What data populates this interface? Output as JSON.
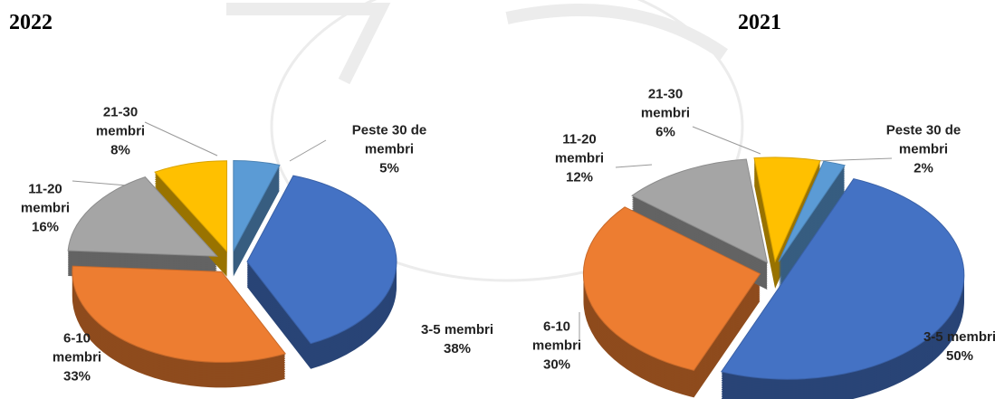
{
  "chart_data": [
    {
      "type": "pie",
      "title": "2022",
      "categories": [
        "3-5 membri",
        "6-10 membri",
        "11-20 membri",
        "21-30 membri",
        "Peste 30 de membri"
      ],
      "values": [
        38,
        33,
        16,
        8,
        5
      ],
      "value_labels": [
        "38%",
        "33%",
        "16%",
        "8%",
        "5%"
      ],
      "colors": [
        "#4472c4",
        "#ed7d31",
        "#a5a5a5",
        "#ffc000",
        "#5b9bd5"
      ]
    },
    {
      "type": "pie",
      "title": "2021",
      "categories": [
        "3-5 membri",
        "6-10 membri",
        "11-20 membri",
        "21-30 membri",
        "Peste 30 de membri"
      ],
      "values": [
        50,
        30,
        12,
        6,
        2
      ],
      "value_labels": [
        "50%",
        "30%",
        "12%",
        "6%",
        "2%"
      ],
      "colors": [
        "#4472c4",
        "#ed7d31",
        "#a5a5a5",
        "#ffc000",
        "#5b9bd5"
      ]
    }
  ]
}
